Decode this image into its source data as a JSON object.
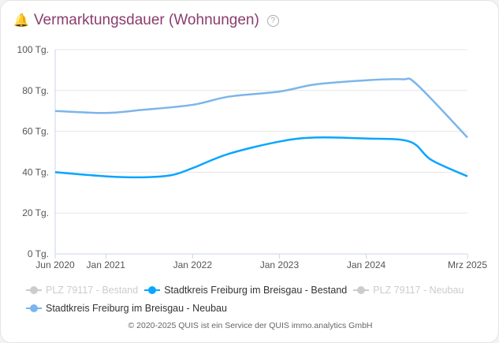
{
  "header": {
    "title": "Vermarktungsdauer (Wohnungen)",
    "icon": "bell-icon",
    "help_icon": "question-circle-icon",
    "help_label": "?"
  },
  "chart_data": {
    "type": "line",
    "title": "Vermarktungsdauer (Wohnungen)",
    "ylim": [
      0,
      100
    ],
    "yticks": [
      0,
      20,
      40,
      60,
      80,
      100
    ],
    "ytick_labels": [
      "0 Tg.",
      "20 Tg.",
      "40 Tg.",
      "60 Tg.",
      "80 Tg.",
      "100 Tg."
    ],
    "xlim": [
      "2020-06",
      "2025-03"
    ],
    "xticks": [
      "2020-06",
      "2021-01",
      "2022-01",
      "2023-01",
      "2024-01",
      "2025-03"
    ],
    "xtick_labels": [
      "Jun 2020",
      "Jan 2021",
      "Jan 2022",
      "Jan 2023",
      "Jan 2024",
      "Mrz 2025"
    ],
    "grid": "horizontal",
    "legend_position": "bottom",
    "series": [
      {
        "name": "PLZ 79117 - Bestand",
        "color": "#cccccc",
        "hidden": true,
        "x": [],
        "values": []
      },
      {
        "name": "Stadtkreis Freiburg im Breisgau - Bestand",
        "color": "#0aa5ff",
        "hidden": false,
        "x": [
          "2020-06",
          "2021-01",
          "2021-06",
          "2021-10",
          "2022-01",
          "2022-06",
          "2023-01",
          "2023-06",
          "2024-01",
          "2024-07",
          "2024-10",
          "2025-03"
        ],
        "values": [
          40,
          38,
          37.5,
          38.5,
          42,
          49,
          55,
          57,
          56.5,
          55,
          46,
          38
        ]
      },
      {
        "name": "PLZ 79117 - Neubau",
        "color": "#cccccc",
        "hidden": true,
        "x": [],
        "values": []
      },
      {
        "name": "Stadtkreis Freiburg im Breisgau - Neubau",
        "color": "#7cb5ec",
        "hidden": false,
        "x": [
          "2020-06",
          "2021-01",
          "2021-06",
          "2022-01",
          "2022-06",
          "2023-01",
          "2023-06",
          "2024-01",
          "2024-06",
          "2024-08",
          "2025-03"
        ],
        "values": [
          70,
          69,
          70.5,
          73,
          77,
          79.5,
          83,
          85,
          85.5,
          83,
          57
        ]
      }
    ]
  },
  "footer": "© 2020-2025 QUIS ist ein Service der QUIS immo.analytics GmbH"
}
